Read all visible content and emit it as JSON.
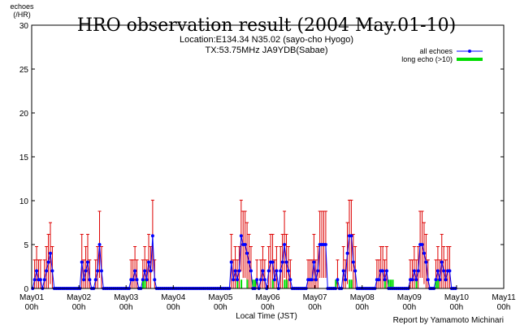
{
  "chart_data": {
    "type": "line",
    "title": "HRO observation result (2004 May.01-10)",
    "subtitle_lines": [
      "Location:E134.34 N35.02 (sayo-cho Hyogo)",
      "TX:53.75MHz JA9YDB(Sabae)"
    ],
    "ylabel_lines": [
      "echoes",
      "(/HR)"
    ],
    "xlabel": "Local Time (JST)",
    "credit": "Report by Yamamoto Michinari",
    "ylim": [
      0,
      30
    ],
    "yticks": [
      "0",
      "5",
      "10",
      "15",
      "20",
      "25",
      "30"
    ],
    "xlim": [
      0,
      240
    ],
    "xticks": [
      {
        "day": "May01",
        "time": "00h"
      },
      {
        "day": "May02",
        "time": "00h"
      },
      {
        "day": "May03",
        "time": "00h"
      },
      {
        "day": "May04",
        "time": "00h"
      },
      {
        "day": "May05",
        "time": "00h"
      },
      {
        "day": "May06",
        "time": "00h"
      },
      {
        "day": "May07",
        "time": "00h"
      },
      {
        "day": "May08",
        "time": "00h"
      },
      {
        "day": "May09",
        "time": "00h"
      },
      {
        "day": "May10",
        "time": "00h"
      },
      {
        "day": "May11",
        "time": "00h"
      }
    ],
    "legend_position": "top-right",
    "series": [
      {
        "name": "all echoes",
        "color": "#0000ff",
        "error_color": "#dd0000",
        "points": [
          [
            1,
            1
          ],
          [
            2,
            2
          ],
          [
            3,
            1
          ],
          [
            4,
            1
          ],
          [
            5,
            0
          ],
          [
            6,
            1
          ],
          [
            7,
            2
          ],
          [
            8,
            3
          ],
          [
            9,
            4
          ],
          [
            10,
            2
          ],
          [
            25,
            3
          ],
          [
            26,
            1
          ],
          [
            27,
            2
          ],
          [
            28,
            3
          ],
          [
            29,
            1
          ],
          [
            32,
            1
          ],
          [
            33,
            2
          ],
          [
            34,
            5
          ],
          [
            35,
            2
          ],
          [
            50,
            1
          ],
          [
            51,
            1
          ],
          [
            52,
            2
          ],
          [
            53,
            1
          ],
          [
            54,
            0
          ],
          [
            56,
            1
          ],
          [
            57,
            2
          ],
          [
            58,
            1
          ],
          [
            59,
            3
          ],
          [
            60,
            2
          ],
          [
            61,
            6
          ],
          [
            62,
            1
          ],
          [
            101,
            3
          ],
          [
            102,
            1
          ],
          [
            103,
            2
          ],
          [
            104,
            1
          ],
          [
            105,
            2
          ],
          [
            106,
            6
          ],
          [
            107,
            5
          ],
          [
            108,
            5
          ],
          [
            109,
            4
          ],
          [
            110,
            3
          ],
          [
            111,
            2
          ],
          [
            114,
            1
          ],
          [
            116,
            1
          ],
          [
            117,
            2
          ],
          [
            118,
            1
          ],
          [
            120,
            2
          ],
          [
            121,
            3
          ],
          [
            122,
            3
          ],
          [
            123,
            1
          ],
          [
            124,
            2
          ],
          [
            126,
            2
          ],
          [
            127,
            3
          ],
          [
            128,
            5
          ],
          [
            129,
            3
          ],
          [
            130,
            2
          ],
          [
            131,
            1
          ],
          [
            140,
            1
          ],
          [
            141,
            1
          ],
          [
            142,
            1
          ],
          [
            143,
            3
          ],
          [
            144,
            1
          ],
          [
            145,
            2
          ],
          [
            146,
            5
          ],
          [
            147,
            5
          ],
          [
            148,
            5
          ],
          [
            149,
            5
          ],
          [
            155,
            1
          ],
          [
            158,
            2
          ],
          [
            159,
            1
          ],
          [
            160,
            4
          ],
          [
            161,
            6
          ],
          [
            162,
            6
          ],
          [
            163,
            3
          ],
          [
            164,
            2
          ],
          [
            175,
            1
          ],
          [
            176,
            1
          ],
          [
            177,
            2
          ],
          [
            178,
            2
          ],
          [
            179,
            1
          ],
          [
            180,
            2
          ],
          [
            192,
            1
          ],
          [
            193,
            1
          ],
          [
            194,
            2
          ],
          [
            195,
            1
          ],
          [
            196,
            2
          ],
          [
            197,
            5
          ],
          [
            198,
            5
          ],
          [
            199,
            4
          ],
          [
            200,
            3
          ],
          [
            201,
            1
          ],
          [
            205,
            1
          ],
          [
            206,
            2
          ],
          [
            207,
            1
          ],
          [
            208,
            3
          ],
          [
            209,
            2
          ],
          [
            210,
            1
          ],
          [
            211,
            2
          ],
          [
            212,
            2
          ]
        ]
      },
      {
        "name": "long echo (>10)",
        "color": "#00dd00",
        "points": [
          [
            56,
            1
          ],
          [
            57,
            1
          ],
          [
            104,
            1
          ],
          [
            106,
            1
          ],
          [
            109,
            1
          ],
          [
            112,
            1
          ],
          [
            113,
            1
          ],
          [
            122,
            1
          ],
          [
            128,
            1
          ],
          [
            129,
            1
          ],
          [
            154,
            1
          ],
          [
            161,
            1
          ],
          [
            162,
            1
          ],
          [
            179,
            1
          ],
          [
            181,
            1
          ],
          [
            182,
            1
          ],
          [
            183,
            1
          ],
          [
            195,
            1
          ],
          [
            205,
            1
          ],
          [
            206,
            1
          ]
        ]
      }
    ]
  }
}
